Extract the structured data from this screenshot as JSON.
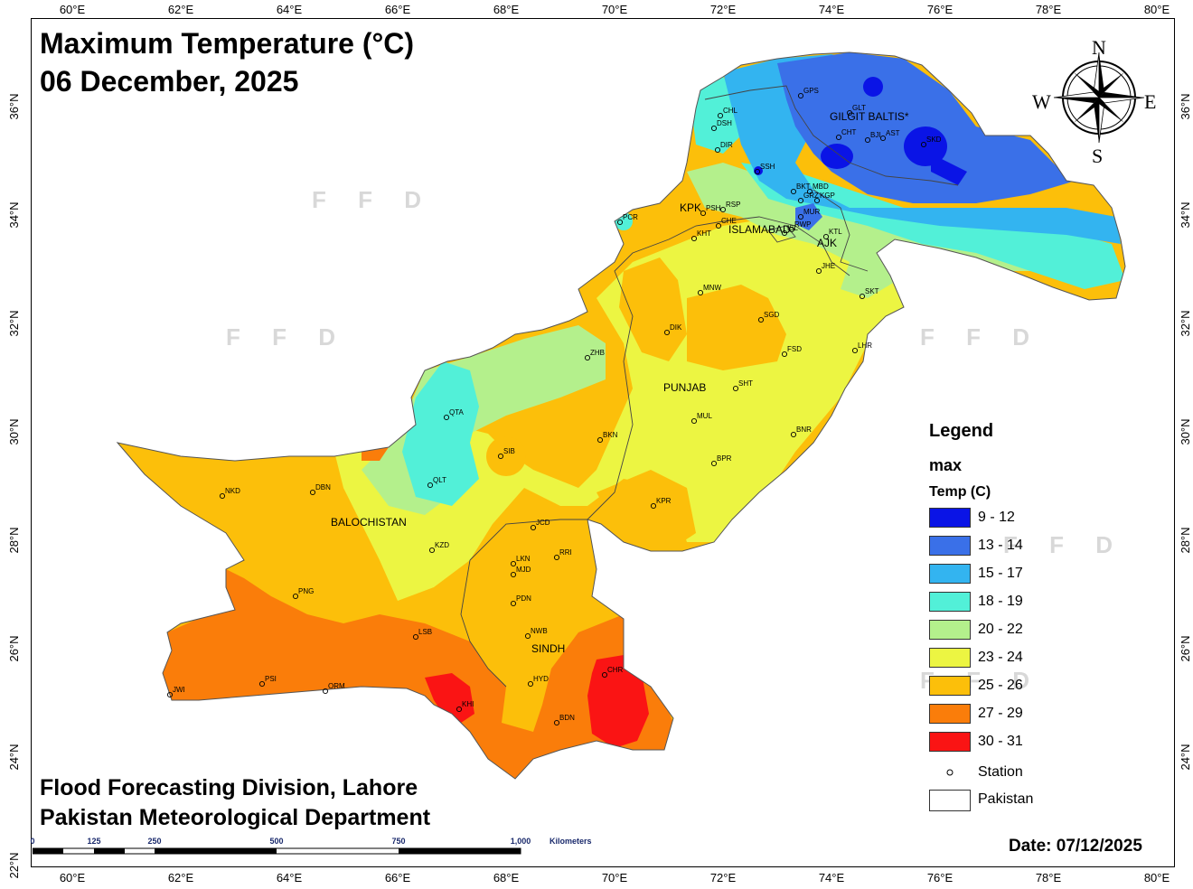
{
  "title": {
    "line1": "Maximum Temperature (°C)",
    "line2": "06 December, 2025"
  },
  "credits": {
    "line1": "Flood Forecasting Division, Lahore",
    "line2": "Pakistan Meteorological Department"
  },
  "date": "Date: 07/12/2025",
  "axes": {
    "longitude_ticks": [
      "60°E",
      "62°E",
      "64°E",
      "66°E",
      "68°E",
      "70°E",
      "72°E",
      "74°E",
      "76°E",
      "78°E",
      "80°E"
    ],
    "latitude_ticks": [
      "36°N",
      "34°N",
      "32°N",
      "30°N",
      "28°N",
      "26°N",
      "24°N",
      "22°N"
    ]
  },
  "watermark": "F F D",
  "legend": {
    "title": "Legend",
    "field": "max",
    "unit": "Temp (C)",
    "classes": [
      {
        "label": "9 - 12",
        "color": "#0a14e6"
      },
      {
        "label": "13 - 14",
        "color": "#3a70e8"
      },
      {
        "label": "15 - 17",
        "color": "#33b4f0"
      },
      {
        "label": "18 - 19",
        "color": "#52f0d8"
      },
      {
        "label": "20 - 22",
        "color": "#b4f08c"
      },
      {
        "label": "23 - 24",
        "color": "#ecf542"
      },
      {
        "label": "25 - 26",
        "color": "#fcbf0a"
      },
      {
        "label": "27 - 29",
        "color": "#fa7d0a"
      },
      {
        "label": "30 - 31",
        "color": "#fa1414"
      }
    ],
    "station_label": "Station",
    "boundary_label": "Pakistan"
  },
  "regions": {
    "balochistan": "BALOCHISTAN",
    "punjab": "PUNJAB",
    "sindh": "SINDH",
    "kpk": "KPK",
    "islamabad": "ISLAMABAD",
    "ajk": "AJK",
    "gilgit": "GILGIT BALTIS*"
  },
  "stations": [
    "GPS",
    "GLT",
    "CHT",
    "BJI",
    "AST",
    "SKD",
    "CHL",
    "DSH",
    "DIR",
    "SSH",
    "BKT",
    "MBD",
    "GRZ",
    "KGP",
    "PSH",
    "RSP",
    "MUR",
    "CHE",
    "ISL",
    "RWP",
    "KTL",
    "KHT",
    "PCR",
    "JHE",
    "SKT",
    "MNW",
    "SGD",
    "DIK",
    "FSD",
    "LHR",
    "ZHB",
    "SHT",
    "QTA",
    "MUL",
    "BKN",
    "BNR",
    "SIB",
    "BPR",
    "QLT",
    "NKD",
    "DBN",
    "KPR",
    "JCD",
    "KZD",
    "RRI",
    "LKN",
    "MJD",
    "PNG",
    "PDN",
    "NWB",
    "LSB",
    "PSI",
    "ORM",
    "JWI",
    "HYD",
    "CHR",
    "KHI",
    "BDN"
  ],
  "compass": {
    "n": "N",
    "s": "S",
    "e": "E",
    "w": "W"
  },
  "scale": {
    "ticks": [
      "0",
      "125",
      "250",
      "500",
      "750",
      "1,000"
    ],
    "unit": "Kilometers"
  }
}
